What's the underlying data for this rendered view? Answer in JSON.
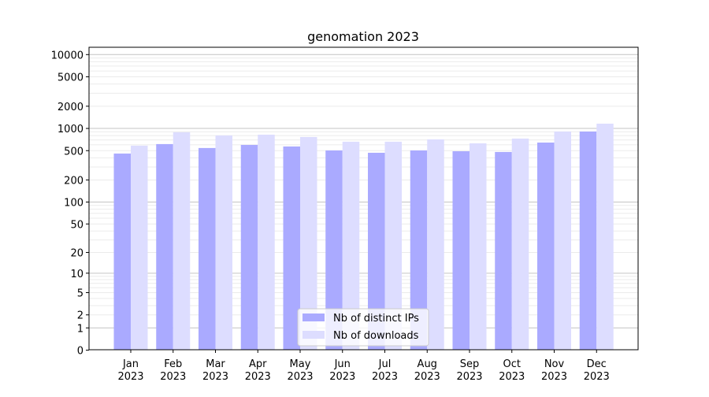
{
  "chart_data": {
    "type": "bar",
    "title": "genomation 2023",
    "xlabel": "",
    "ylabel": "",
    "yscale": "symlog",
    "ylim": [
      0,
      12000
    ],
    "yticks": [
      0,
      1,
      2,
      5,
      10,
      20,
      50,
      100,
      200,
      500,
      1000,
      2000,
      5000,
      10000
    ],
    "ytick_labels": [
      "0",
      "1",
      "2",
      "5",
      "10",
      "20",
      "50",
      "100",
      "200",
      "500",
      "1000",
      "2000",
      "5000",
      "10000"
    ],
    "grid": true,
    "legend_position": "bottom-center",
    "categories": [
      "Jan\n2023",
      "Feb\n2023",
      "Mar\n2023",
      "Apr\n2023",
      "May\n2023",
      "Jun\n2023",
      "Jul\n2023",
      "Aug\n2023",
      "Sep\n2023",
      "Oct\n2023",
      "Nov\n2023",
      "Dec\n2023"
    ],
    "category_lines": [
      [
        "Jan",
        "2023"
      ],
      [
        "Feb",
        "2023"
      ],
      [
        "Mar",
        "2023"
      ],
      [
        "Apr",
        "2023"
      ],
      [
        "May",
        "2023"
      ],
      [
        "Jun",
        "2023"
      ],
      [
        "Jul",
        "2023"
      ],
      [
        "Aug",
        "2023"
      ],
      [
        "Sep",
        "2023"
      ],
      [
        "Oct",
        "2023"
      ],
      [
        "Nov",
        "2023"
      ],
      [
        "Dec",
        "2023"
      ]
    ],
    "series": [
      {
        "name": "Nb of distinct IPs",
        "color": "#aaaaff",
        "values": [
          457,
          614,
          543,
          598,
          570,
          503,
          468,
          503,
          491,
          480,
          644,
          909
        ]
      },
      {
        "name": "Nb of downloads",
        "color": "#ddddff",
        "values": [
          584,
          887,
          803,
          824,
          766,
          661,
          661,
          711,
          628,
          729,
          909,
          1161
        ]
      }
    ]
  }
}
